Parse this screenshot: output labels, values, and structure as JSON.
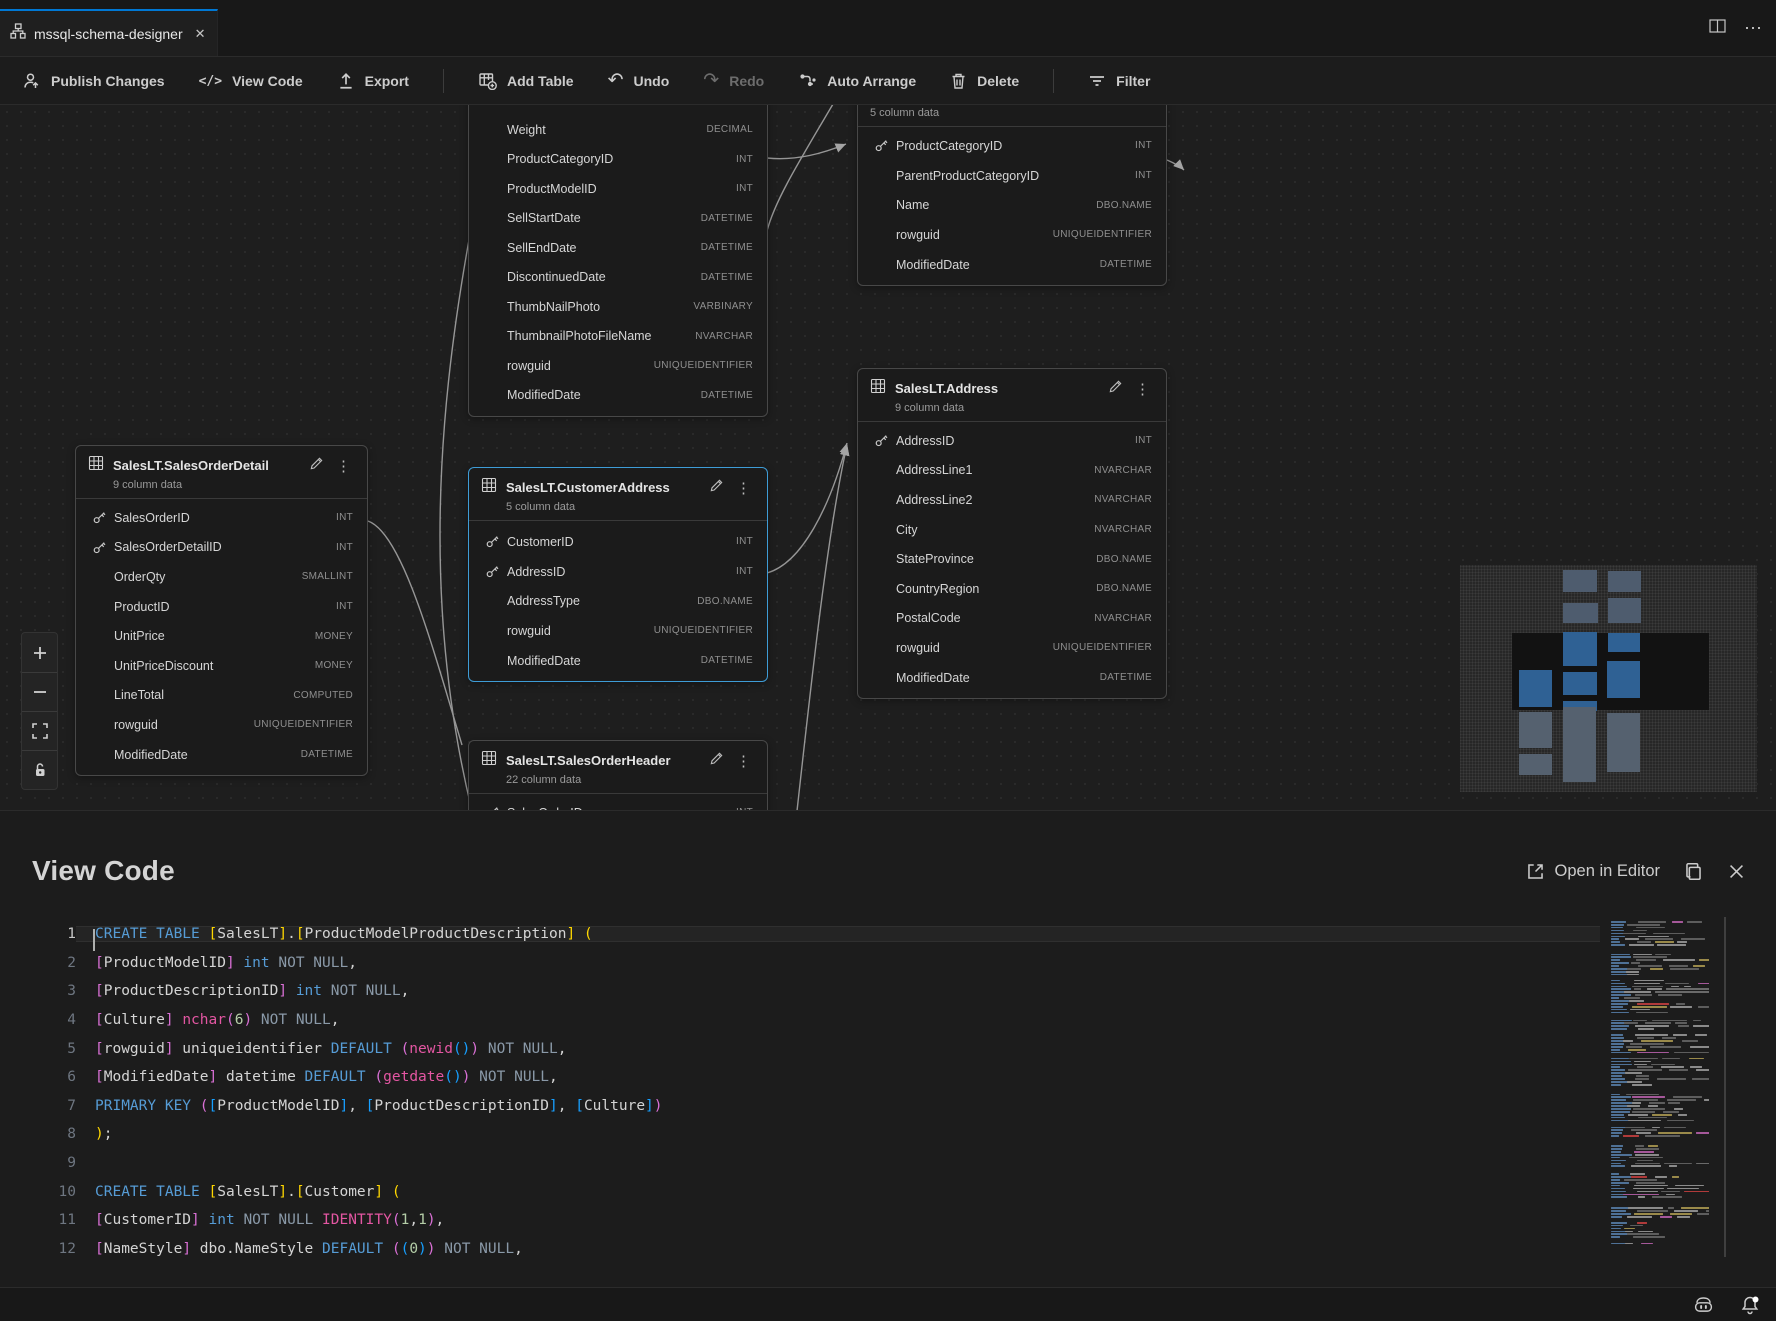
{
  "tab": {
    "title": "mssql-schema-designer",
    "close_glyph": "✕"
  },
  "window": {
    "more_glyph": "⋯"
  },
  "toolbar": {
    "items": [
      {
        "id": "publish-changes",
        "label": "Publish Changes",
        "disabled": false
      },
      {
        "id": "view-code",
        "label": "View Code",
        "disabled": false
      },
      {
        "id": "export",
        "label": "Export",
        "disabled": false
      },
      {
        "id": "sep1",
        "separator": true
      },
      {
        "id": "add-table",
        "label": "Add Table",
        "disabled": false
      },
      {
        "id": "undo",
        "label": "Undo",
        "glyph": "↶",
        "disabled": false
      },
      {
        "id": "redo",
        "label": "Redo",
        "glyph": "↷",
        "disabled": true
      },
      {
        "id": "auto-arrange",
        "label": "Auto Arrange",
        "disabled": false
      },
      {
        "id": "delete",
        "label": "Delete",
        "disabled": false
      },
      {
        "id": "sep2",
        "separator": true
      },
      {
        "id": "filter",
        "label": "Filter",
        "disabled": false
      }
    ]
  },
  "canvas": {
    "tables": [
      {
        "id": "product",
        "title": "",
        "subtitle": "",
        "columns": [
          {
            "name": "Weight",
            "type": "DECIMAL"
          },
          {
            "name": "ProductCategoryID",
            "type": "INT"
          },
          {
            "name": "ProductModelID",
            "type": "INT"
          },
          {
            "name": "SellStartDate",
            "type": "DATETIME"
          },
          {
            "name": "SellEndDate",
            "type": "DATETIME"
          },
          {
            "name": "DiscontinuedDate",
            "type": "DATETIME"
          },
          {
            "name": "ThumbNailPhoto",
            "type": "VARBINARY"
          },
          {
            "name": "ThumbnailPhotoFileName",
            "type": "NVARCHAR"
          },
          {
            "name": "rowguid",
            "type": "UNIQUEIDENTIFIER"
          },
          {
            "name": "ModifiedDate",
            "type": "DATETIME"
          }
        ]
      },
      {
        "id": "productcategory",
        "title": "",
        "subtitle": "5 column data",
        "columns": [
          {
            "name": "ProductCategoryID",
            "type": "INT",
            "key": true
          },
          {
            "name": "ParentProductCategoryID",
            "type": "INT"
          },
          {
            "name": "Name",
            "type": "DBO.NAME"
          },
          {
            "name": "rowguid",
            "type": "UNIQUEIDENTIFIER"
          },
          {
            "name": "ModifiedDate",
            "type": "DATETIME"
          }
        ]
      },
      {
        "id": "salesorderdetail",
        "title": "SalesLT.SalesOrderDetail",
        "subtitle": "9 column data",
        "columns": [
          {
            "name": "SalesOrderID",
            "type": "INT",
            "key": true
          },
          {
            "name": "SalesOrderDetailID",
            "type": "INT",
            "key": true
          },
          {
            "name": "OrderQty",
            "type": "SMALLINT"
          },
          {
            "name": "ProductID",
            "type": "INT"
          },
          {
            "name": "UnitPrice",
            "type": "MONEY"
          },
          {
            "name": "UnitPriceDiscount",
            "type": "MONEY"
          },
          {
            "name": "LineTotal",
            "type": "COMPUTED"
          },
          {
            "name": "rowguid",
            "type": "UNIQUEIDENTIFIER"
          },
          {
            "name": "ModifiedDate",
            "type": "DATETIME"
          }
        ]
      },
      {
        "id": "customeraddress",
        "title": "SalesLT.CustomerAddress",
        "subtitle": "5 column data",
        "selected": true,
        "columns": [
          {
            "name": "CustomerID",
            "type": "INT",
            "key": true
          },
          {
            "name": "AddressID",
            "type": "INT",
            "key": true
          },
          {
            "name": "AddressType",
            "type": "DBO.NAME"
          },
          {
            "name": "rowguid",
            "type": "UNIQUEIDENTIFIER"
          },
          {
            "name": "ModifiedDate",
            "type": "DATETIME"
          }
        ]
      },
      {
        "id": "address",
        "title": "SalesLT.Address",
        "subtitle": "9 column data",
        "columns": [
          {
            "name": "AddressID",
            "type": "INT",
            "key": true
          },
          {
            "name": "AddressLine1",
            "type": "NVARCHAR"
          },
          {
            "name": "AddressLine2",
            "type": "NVARCHAR"
          },
          {
            "name": "City",
            "type": "NVARCHAR"
          },
          {
            "name": "StateProvince",
            "type": "DBO.NAME"
          },
          {
            "name": "CountryRegion",
            "type": "DBO.NAME"
          },
          {
            "name": "PostalCode",
            "type": "NVARCHAR"
          },
          {
            "name": "rowguid",
            "type": "UNIQUEIDENTIFIER"
          },
          {
            "name": "ModifiedDate",
            "type": "DATETIME"
          }
        ]
      },
      {
        "id": "salesorderheader",
        "title": "SalesLT.SalesOrderHeader",
        "subtitle": "22 column data",
        "columns": [
          {
            "name": "SalesOrderID",
            "type": "INT",
            "key": true
          }
        ]
      }
    ]
  },
  "view_code": {
    "title": "View Code",
    "open_in_editor": "Open in Editor"
  },
  "code": {
    "lines": [
      {
        "n": "1",
        "t": [
          [
            "kw",
            "CREATE TABLE "
          ],
          [
            "b1",
            "["
          ],
          [
            "pl",
            "SalesLT"
          ],
          [
            "b1",
            "]"
          ],
          [
            "pl",
            "."
          ],
          [
            "b1",
            "["
          ],
          [
            "pl",
            "ProductModelProductDescription"
          ],
          [
            "b1",
            "]"
          ],
          [
            "pl",
            " "
          ],
          [
            "b1",
            "("
          ]
        ]
      },
      {
        "n": "2",
        "t": [
          [
            "b2",
            "["
          ],
          [
            "pl",
            "ProductModelID"
          ],
          [
            "b2",
            "]"
          ],
          [
            "pl",
            " "
          ],
          [
            "kw",
            "int"
          ],
          [
            "pl",
            " "
          ],
          [
            "gr",
            "NOT NULL"
          ],
          [
            "pl",
            ","
          ]
        ]
      },
      {
        "n": "3",
        "t": [
          [
            "b2",
            "["
          ],
          [
            "pl",
            "ProductDescriptionID"
          ],
          [
            "b2",
            "]"
          ],
          [
            "pl",
            " "
          ],
          [
            "kw",
            "int"
          ],
          [
            "pl",
            " "
          ],
          [
            "gr",
            "NOT NULL"
          ],
          [
            "pl",
            ","
          ]
        ]
      },
      {
        "n": "4",
        "t": [
          [
            "b2",
            "["
          ],
          [
            "pl",
            "Culture"
          ],
          [
            "b2",
            "]"
          ],
          [
            "pl",
            " "
          ],
          [
            "fn",
            "nchar"
          ],
          [
            "b2",
            "("
          ],
          [
            "num",
            "6"
          ],
          [
            "b2",
            ")"
          ],
          [
            "pl",
            " "
          ],
          [
            "gr",
            "NOT NULL"
          ],
          [
            "pl",
            ","
          ]
        ]
      },
      {
        "n": "5",
        "t": [
          [
            "b2",
            "["
          ],
          [
            "pl",
            "rowguid"
          ],
          [
            "b2",
            "]"
          ],
          [
            "pl",
            " uniqueidentifier "
          ],
          [
            "kw",
            "DEFAULT"
          ],
          [
            "pl",
            " "
          ],
          [
            "b2",
            "("
          ],
          [
            "fn",
            "newid"
          ],
          [
            "b3",
            "()"
          ],
          [
            "b2",
            ")"
          ],
          [
            "pl",
            " "
          ],
          [
            "gr",
            "NOT NULL"
          ],
          [
            "pl",
            ","
          ]
        ]
      },
      {
        "n": "6",
        "t": [
          [
            "b2",
            "["
          ],
          [
            "pl",
            "ModifiedDate"
          ],
          [
            "b2",
            "]"
          ],
          [
            "pl",
            " datetime "
          ],
          [
            "kw",
            "DEFAULT"
          ],
          [
            "pl",
            " "
          ],
          [
            "b2",
            "("
          ],
          [
            "fn",
            "getdate"
          ],
          [
            "b3",
            "()"
          ],
          [
            "b2",
            ")"
          ],
          [
            "pl",
            " "
          ],
          [
            "gr",
            "NOT NULL"
          ],
          [
            "pl",
            ","
          ]
        ]
      },
      {
        "n": "7",
        "t": [
          [
            "kw",
            "PRIMARY KEY"
          ],
          [
            "pl",
            " "
          ],
          [
            "b2",
            "("
          ],
          [
            "b3",
            "["
          ],
          [
            "pl",
            "ProductModelID"
          ],
          [
            "b3",
            "]"
          ],
          [
            "pl",
            ", "
          ],
          [
            "b3",
            "["
          ],
          [
            "pl",
            "ProductDescriptionID"
          ],
          [
            "b3",
            "]"
          ],
          [
            "pl",
            ", "
          ],
          [
            "b3",
            "["
          ],
          [
            "pl",
            "Culture"
          ],
          [
            "b3",
            "]"
          ],
          [
            "b2",
            ")"
          ]
        ]
      },
      {
        "n": "8",
        "t": [
          [
            "b1",
            ")"
          ],
          [
            "pl",
            ";"
          ]
        ]
      },
      {
        "n": "9",
        "t": []
      },
      {
        "n": "10",
        "t": [
          [
            "kw",
            "CREATE TABLE "
          ],
          [
            "b1",
            "["
          ],
          [
            "pl",
            "SalesLT"
          ],
          [
            "b1",
            "]"
          ],
          [
            "pl",
            "."
          ],
          [
            "b1",
            "["
          ],
          [
            "pl",
            "Customer"
          ],
          [
            "b1",
            "]"
          ],
          [
            "pl",
            " "
          ],
          [
            "b1",
            "("
          ]
        ]
      },
      {
        "n": "11",
        "t": [
          [
            "b2",
            "["
          ],
          [
            "pl",
            "CustomerID"
          ],
          [
            "b2",
            "]"
          ],
          [
            "pl",
            " "
          ],
          [
            "kw",
            "int"
          ],
          [
            "pl",
            " "
          ],
          [
            "gr",
            "NOT NULL"
          ],
          [
            "pl",
            " "
          ],
          [
            "fn",
            "IDENTITY"
          ],
          [
            "b2",
            "("
          ],
          [
            "num",
            "1"
          ],
          [
            "pl",
            ","
          ],
          [
            "num",
            "1"
          ],
          [
            "b2",
            ")"
          ],
          [
            "pl",
            ","
          ]
        ]
      },
      {
        "n": "12",
        "t": [
          [
            "b2",
            "["
          ],
          [
            "pl",
            "NameStyle"
          ],
          [
            "b2",
            "]"
          ],
          [
            "pl",
            " dbo.NameStyle "
          ],
          [
            "kw",
            "DEFAULT"
          ],
          [
            "pl",
            " "
          ],
          [
            "b2",
            "("
          ],
          [
            "b3",
            "("
          ],
          [
            "num",
            "0"
          ],
          [
            "b3",
            ")"
          ],
          [
            "b2",
            ")"
          ],
          [
            "pl",
            " "
          ],
          [
            "gr",
            "NOT NULL"
          ],
          [
            "pl",
            ","
          ]
        ]
      }
    ]
  }
}
